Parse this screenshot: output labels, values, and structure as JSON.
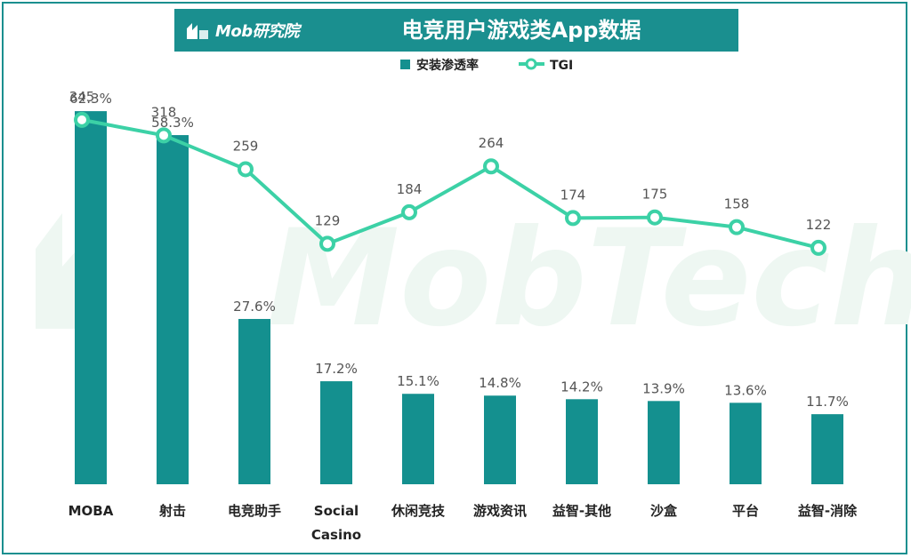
{
  "header": {
    "logo_text": "Mob研究院",
    "title": "电竞用户游戏类App数据"
  },
  "watermark": {
    "text": "MobTech"
  },
  "colors": {
    "banner": "#1a8f8f",
    "bar": "#14908f",
    "line": "#3cd1a6",
    "watermark": "#eaf5ef"
  },
  "chart_data": {
    "type": "bar",
    "title": "电竞用户游戏类App数据",
    "categories": [
      "MOBA",
      "射击",
      "电竞助手",
      "Social\nCasino",
      "休闲竞技",
      "游戏资讯",
      "益智-其他",
      "沙盒",
      "平台",
      "益智-消除"
    ],
    "series": [
      {
        "name": "安装渗透率",
        "kind": "bar",
        "values": [
          62.3,
          58.3,
          27.6,
          17.2,
          15.1,
          14.8,
          14.2,
          13.9,
          13.6,
          11.7
        ],
        "labels": [
          "62.3%",
          "58.3%",
          "27.6%",
          "17.2%",
          "15.1%",
          "14.8%",
          "14.2%",
          "13.9%",
          "13.6%",
          "11.7%"
        ]
      },
      {
        "name": "TGI",
        "kind": "line",
        "values": [
          345,
          318,
          259,
          129,
          184,
          264,
          174,
          175,
          158,
          122
        ],
        "labels": [
          "345",
          "318",
          "259",
          "129",
          "184",
          "264",
          "174",
          "175",
          "158",
          "122"
        ]
      }
    ],
    "bar_ylim": [
      0,
      70
    ],
    "line_ylim": [
      -290,
      430
    ],
    "legend": {
      "position": "top-center",
      "entries": [
        "安装渗透率",
        "TGI"
      ]
    },
    "grid": false,
    "xlabel": "",
    "ylabel": ""
  }
}
